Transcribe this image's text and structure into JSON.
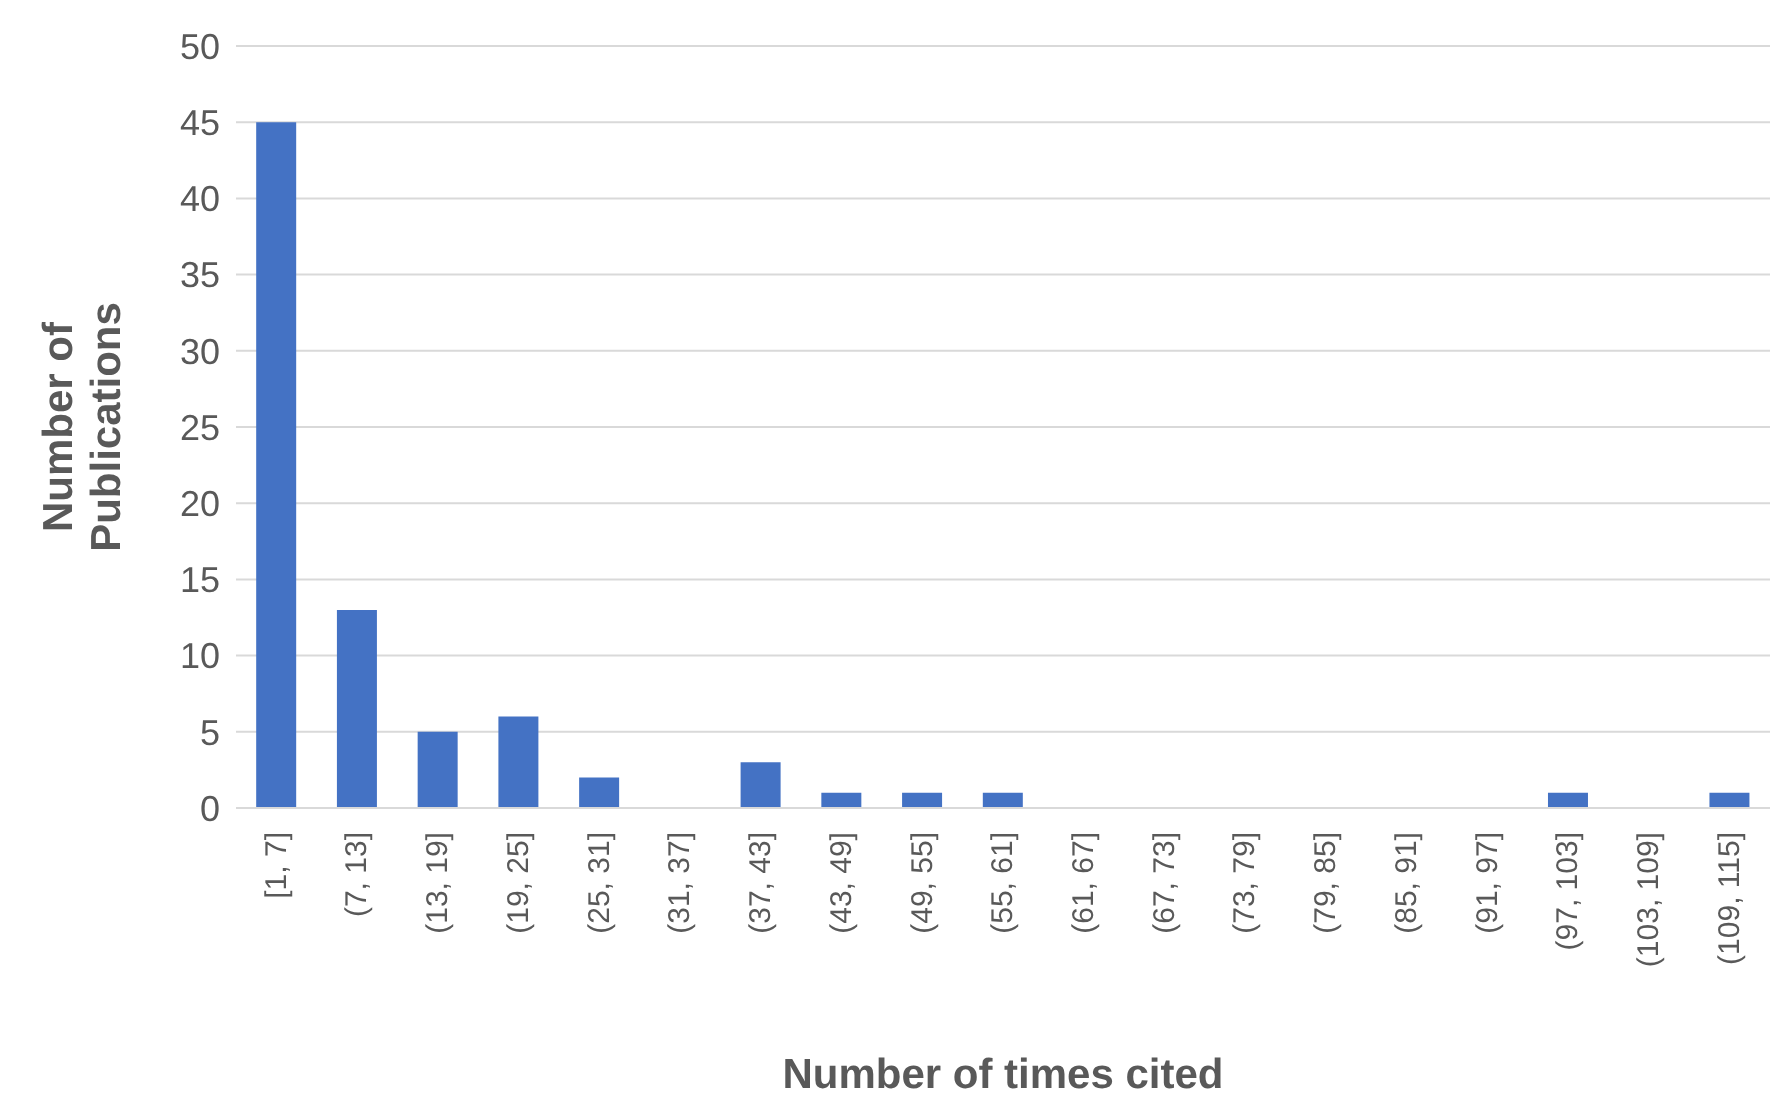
{
  "chart_data": {
    "type": "bar",
    "xlabel": "Number of times cited",
    "ylabel": "Number of Publications",
    "categories": [
      "[1, 7]",
      "(7, 13]",
      "(13, 19]",
      "(19, 25]",
      "(25, 31]",
      "(31, 37]",
      "(37, 43]",
      "(43, 49]",
      "(49, 55]",
      "(55, 61]",
      "(61, 67]",
      "(67, 73]",
      "(73, 79]",
      "(79, 85]",
      "(85, 91]",
      "(91, 97]",
      "(97, 103]",
      "(103, 109]",
      "(109, 115]"
    ],
    "values": [
      45,
      13,
      5,
      6,
      2,
      0,
      3,
      1,
      1,
      1,
      0,
      0,
      0,
      0,
      0,
      0,
      1,
      0,
      1
    ],
    "color": "#4472c4",
    "ylim": [
      0,
      50
    ],
    "yticks": [
      0,
      5,
      10,
      15,
      20,
      25,
      30,
      35,
      40,
      45,
      50
    ],
    "grid": "y"
  }
}
